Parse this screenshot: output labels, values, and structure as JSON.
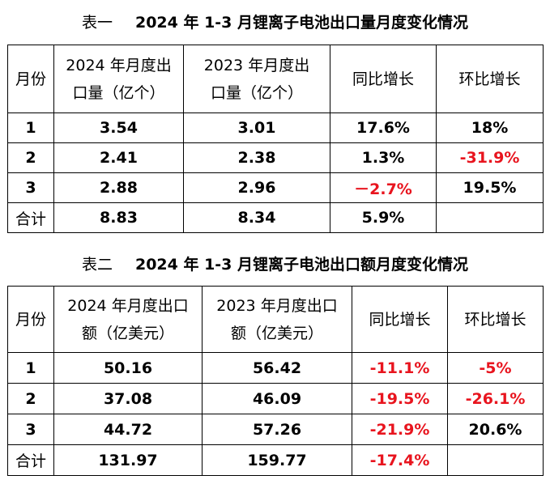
{
  "table1": {
    "label": "表一",
    "title": "2024 年 1-3 月锂离子电池出口量月度变化情况",
    "headers": [
      "月份",
      "2024 年月度出口量（亿个）",
      "2023 年月度出口量（亿个）",
      "同比增长",
      "环比增长"
    ],
    "rows": [
      {
        "month": "1",
        "y2024": "3.54",
        "y2023": "3.01",
        "yoy": "17.6%",
        "yoy_red": false,
        "mom": "18%",
        "mom_red": false
      },
      {
        "month": "2",
        "y2024": "2.41",
        "y2023": "2.38",
        "yoy": "1.3%",
        "yoy_red": false,
        "mom": "-31.9%",
        "mom_red": true
      },
      {
        "month": "3",
        "y2024": "2.88",
        "y2023": "2.96",
        "yoy": "－2.7%",
        "yoy_red": true,
        "mom": "19.5%",
        "mom_red": false
      },
      {
        "month": "合计",
        "y2024": "8.83",
        "y2023": "8.34",
        "yoy": "5.9%",
        "yoy_red": false,
        "mom": "",
        "mom_red": false
      }
    ]
  },
  "table2": {
    "label": "表二",
    "title": "2024 年 1-3 月锂离子电池出口额月度变化情况",
    "headers": [
      "月份",
      "2024 年月度出口额（亿美元）",
      "2023 年月度出口额（亿美元）",
      "同比增长",
      "环比增长"
    ],
    "rows": [
      {
        "month": "1",
        "y2024": "50.16",
        "y2023": "56.42",
        "yoy": "-11.1%",
        "yoy_red": true,
        "mom": "-5%",
        "mom_red": true
      },
      {
        "month": "2",
        "y2024": "37.08",
        "y2023": "46.09",
        "yoy": "-19.5%",
        "yoy_red": true,
        "mom": "-26.1%",
        "mom_red": true
      },
      {
        "month": "3",
        "y2024": "44.72",
        "y2023": "57.26",
        "yoy": "-21.9%",
        "yoy_red": true,
        "mom": "20.6%",
        "mom_red": false
      },
      {
        "month": "合计",
        "y2024": "131.97",
        "y2023": "159.77",
        "yoy": "-17.4%",
        "yoy_red": true,
        "mom": "",
        "mom_red": false
      }
    ]
  },
  "colors": {
    "negative": "#e8141e",
    "text": "#000000"
  }
}
